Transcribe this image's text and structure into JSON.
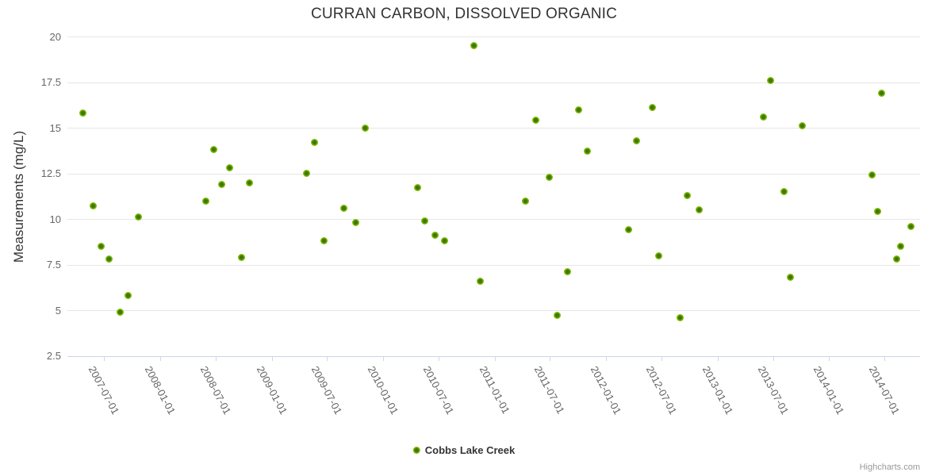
{
  "credit": "Highcharts.com",
  "colors": {
    "series_green": "#84c003",
    "series_green_dark": "#3d7606",
    "gridline": "#e6e6e6",
    "axis_line": "#ccd6eb",
    "tick_label": "#666666",
    "title_text": "#333333",
    "credit_text": "#999999"
  },
  "chart_data": {
    "type": "scatter",
    "title": "CURRAN CARBON, DISSOLVED ORGANIC",
    "ylabel": "Measurements (mg/L)",
    "xlabel": "",
    "ylim": [
      2.5,
      20
    ],
    "grid": true,
    "legend_position": "bottom-center",
    "yticks": [
      20,
      17.5,
      15,
      12.5,
      10,
      7.5,
      5,
      2.5
    ],
    "xticks": [
      "2007-07-01",
      "2008-01-01",
      "2008-07-01",
      "2009-01-01",
      "2009-07-01",
      "2010-01-01",
      "2010-07-01",
      "2011-01-01",
      "2011-07-01",
      "2012-01-01",
      "2012-07-01",
      "2013-01-01",
      "2013-07-01",
      "2014-01-01",
      "2014-07-01"
    ],
    "series": [
      {
        "name": "Cobbs Lake Creek",
        "points": [
          {
            "date": "2007-04-22",
            "value": 15.8
          },
          {
            "date": "2007-05-26",
            "value": 10.7
          },
          {
            "date": "2007-06-21",
            "value": 8.5
          },
          {
            "date": "2007-07-19",
            "value": 7.8
          },
          {
            "date": "2007-08-22",
            "value": 4.9
          },
          {
            "date": "2007-09-17",
            "value": 5.8
          },
          {
            "date": "2007-10-23",
            "value": 10.1
          },
          {
            "date": "2008-05-31",
            "value": 11.0
          },
          {
            "date": "2008-06-24",
            "value": 13.8
          },
          {
            "date": "2008-07-22",
            "value": 11.9
          },
          {
            "date": "2008-08-17",
            "value": 12.8
          },
          {
            "date": "2008-09-23",
            "value": 7.9
          },
          {
            "date": "2008-10-19",
            "value": 12.0
          },
          {
            "date": "2009-04-26",
            "value": 12.5
          },
          {
            "date": "2009-05-20",
            "value": 14.2
          },
          {
            "date": "2009-06-20",
            "value": 8.8
          },
          {
            "date": "2009-08-24",
            "value": 10.6
          },
          {
            "date": "2009-10-02",
            "value": 9.8
          },
          {
            "date": "2009-11-02",
            "value": 15.0
          },
          {
            "date": "2010-04-25",
            "value": 11.7
          },
          {
            "date": "2010-05-18",
            "value": 9.9
          },
          {
            "date": "2010-06-21",
            "value": 9.1
          },
          {
            "date": "2010-07-20",
            "value": 8.8
          },
          {
            "date": "2010-10-26",
            "value": 19.5
          },
          {
            "date": "2010-11-14",
            "value": 6.6
          },
          {
            "date": "2011-04-11",
            "value": 11.0
          },
          {
            "date": "2011-05-15",
            "value": 15.4
          },
          {
            "date": "2011-06-28",
            "value": 12.3
          },
          {
            "date": "2011-07-26",
            "value": 4.7
          },
          {
            "date": "2011-08-29",
            "value": 7.1
          },
          {
            "date": "2011-10-02",
            "value": 16.0
          },
          {
            "date": "2011-10-31",
            "value": 13.7
          },
          {
            "date": "2012-03-16",
            "value": 9.4
          },
          {
            "date": "2012-04-11",
            "value": 14.3
          },
          {
            "date": "2012-06-02",
            "value": 16.1
          },
          {
            "date": "2012-06-23",
            "value": 8.0
          },
          {
            "date": "2012-09-01",
            "value": 4.6
          },
          {
            "date": "2012-09-22",
            "value": 11.3
          },
          {
            "date": "2012-11-02",
            "value": 10.5
          },
          {
            "date": "2013-06-01",
            "value": 15.6
          },
          {
            "date": "2013-06-24",
            "value": 17.6
          },
          {
            "date": "2013-08-05",
            "value": 11.5
          },
          {
            "date": "2013-08-26",
            "value": 6.8
          },
          {
            "date": "2013-10-06",
            "value": 15.1
          },
          {
            "date": "2014-05-23",
            "value": 12.4
          },
          {
            "date": "2014-06-10",
            "value": 10.4
          },
          {
            "date": "2014-06-21",
            "value": 16.9
          },
          {
            "date": "2014-08-09",
            "value": 7.8
          },
          {
            "date": "2014-08-24",
            "value": 8.5
          },
          {
            "date": "2014-09-27",
            "value": 9.6
          }
        ]
      }
    ]
  }
}
